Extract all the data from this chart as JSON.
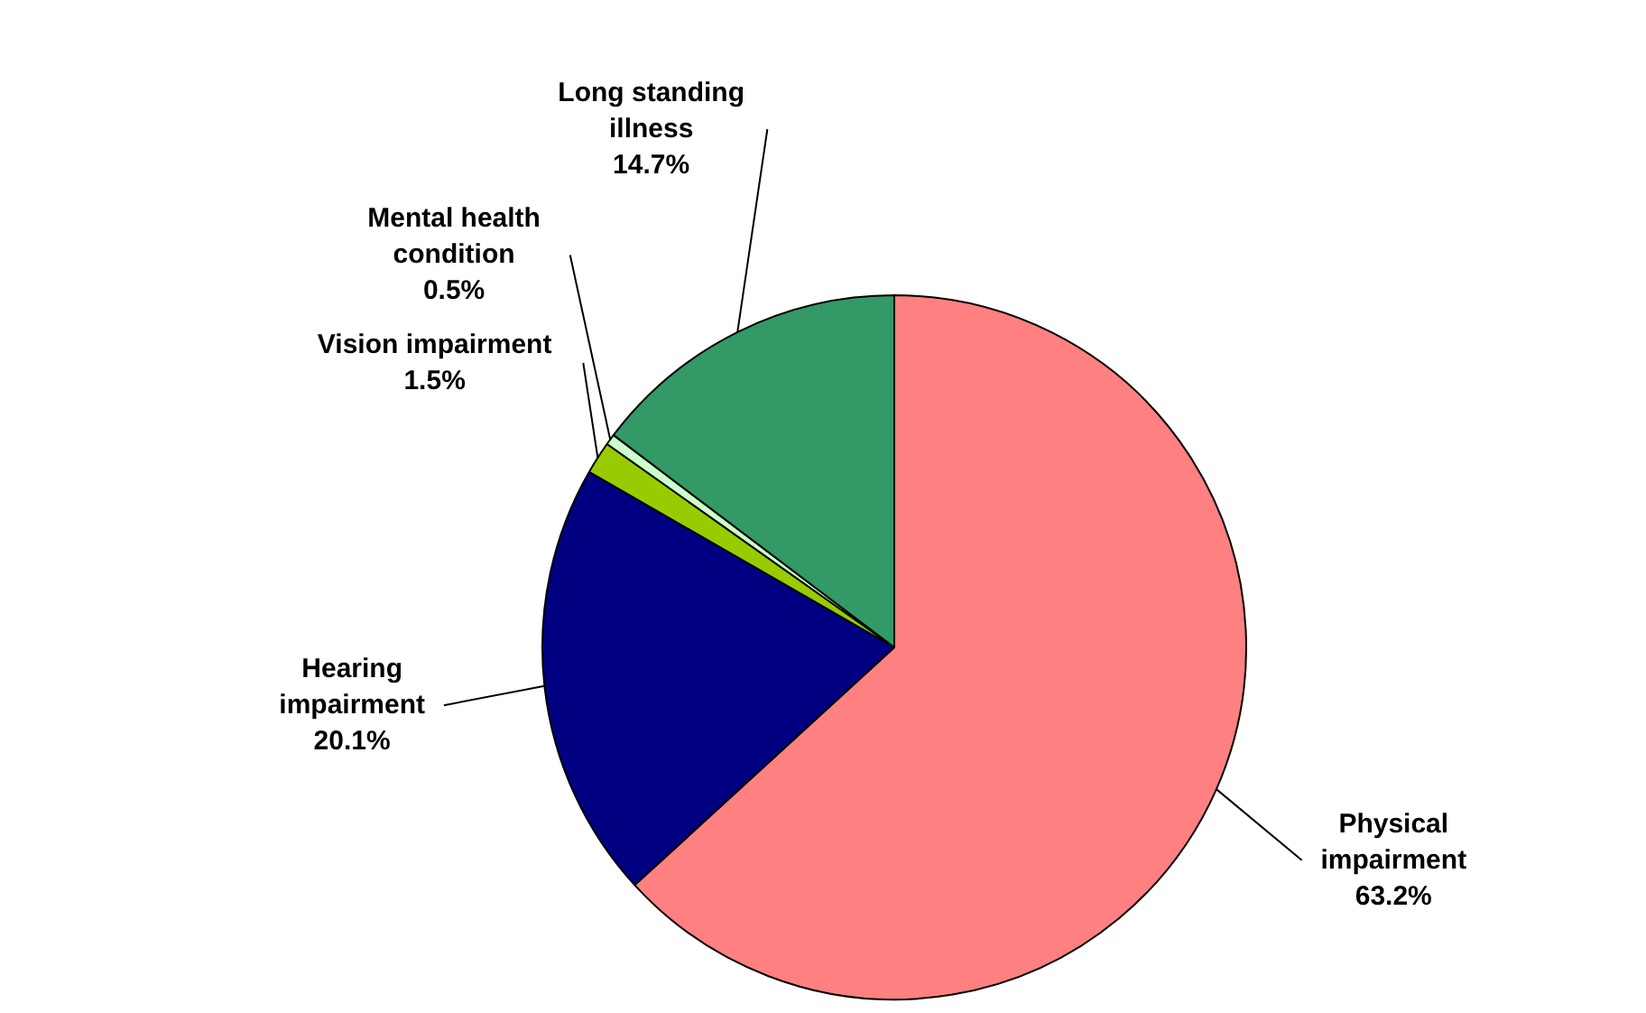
{
  "chart_data": {
    "type": "pie",
    "categories": [
      "Physical\nimpairment",
      "Hearing\nimpairment",
      "Vision impairment",
      "Mental health\ncondition",
      "Long standing\nillness"
    ],
    "values": [
      63.2,
      20.1,
      1.5,
      0.5,
      14.7
    ],
    "colors": [
      "#ff8080",
      "#000080",
      "#99cc00",
      "#ccffcc",
      "#339966"
    ],
    "value_labels": [
      "63.2%",
      "20.1%",
      "1.5%",
      "0.5%",
      "14.7%"
    ],
    "legend": false
  }
}
